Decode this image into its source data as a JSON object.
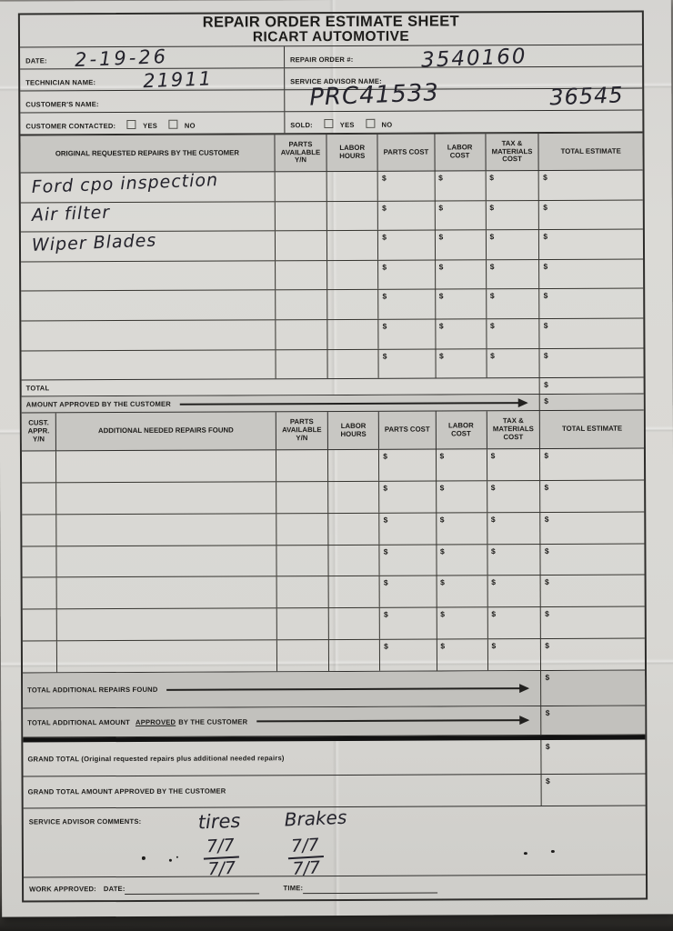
{
  "header": {
    "title_line1": "REPAIR ORDER ESTIMATE SHEET",
    "title_line2": "RICART AUTOMOTIVE"
  },
  "info": {
    "date_label": "DATE:",
    "date_value": "2-19-26",
    "repair_order_label": "REPAIR ORDER #:",
    "repair_order_value": "3540160",
    "technician_label": "TECHNICIAN NAME:",
    "technician_value": "21911",
    "advisor_label": "SERVICE ADVISOR NAME:",
    "advisor_value": "PRC41533",
    "advisor_value2": "36545",
    "customer_label": "CUSTOMER'S NAME:",
    "customer_contacted_label": "CUSTOMER CONTACTED:",
    "sold_label": "SOLD:",
    "yes_label": "YES",
    "no_label": "NO"
  },
  "original_table": {
    "headers": {
      "description": "ORIGINAL REQUESTED REPAIRS BY THE CUSTOMER",
      "parts_available": "PARTS AVAILABLE Y/N",
      "labor_hours": "LABOR HOURS",
      "parts_cost": "PARTS COST",
      "labor_cost": "LABOR COST",
      "tax_materials": "TAX & MATERIALS COST",
      "total_estimate": "TOTAL ESTIMATE"
    },
    "rows": [
      {
        "description": "Ford cpo inspection"
      },
      {
        "description": "Air filter"
      },
      {
        "description": "Wiper Blades"
      },
      {
        "description": ""
      },
      {
        "description": ""
      },
      {
        "description": ""
      },
      {
        "description": ""
      }
    ],
    "currency_symbol": "$",
    "total_label": "TOTAL",
    "amount_approved_label": "AMOUNT APPROVED BY THE CUSTOMER"
  },
  "additional_table": {
    "headers": {
      "cust_appr": "CUST. APPR. Y/N",
      "description": "ADDITIONAL NEEDED REPAIRS FOUND",
      "parts_available": "PARTS AVAILABLE Y/N",
      "labor_hours": "LABOR HOURS",
      "parts_cost": "PARTS COST",
      "labor_cost": "LABOR COST",
      "tax_materials": "TAX & MATERIALS COST",
      "total_estimate": "TOTAL ESTIMATE"
    },
    "row_count": 7,
    "total_additional_label": "TOTAL ADDITIONAL REPAIRS FOUND",
    "approved_prefix": "TOTAL ADDITIONAL AMOUNT",
    "approved_word": "APPROVED",
    "approved_suffix": "BY THE CUSTOMER"
  },
  "grand": {
    "grand_total_label": "GRAND TOTAL (Original requested repairs plus additional needed repairs)",
    "grand_total_approved_label": "GRAND TOTAL AMOUNT APPROVED BY THE CUSTOMER"
  },
  "comments": {
    "label": "SERVICE ADVISOR COMMENTS:",
    "items": [
      {
        "title": "tires",
        "top": "7/7",
        "bottom": "7/7"
      },
      {
        "title": "Brakes",
        "top": "7/7",
        "bottom": "7/7"
      }
    ]
  },
  "footer": {
    "work_approved_label": "WORK APPROVED:",
    "date_label": "DATE:",
    "time_label": "TIME:"
  }
}
